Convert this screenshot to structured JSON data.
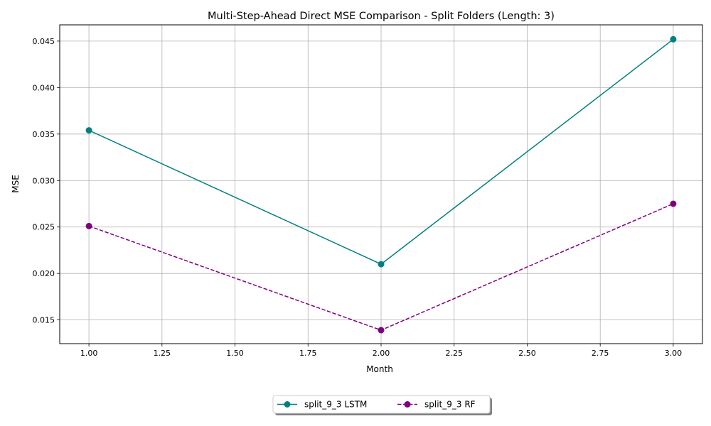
{
  "chart_data": {
    "type": "line",
    "title": "Multi-Step-Ahead Direct MSE Comparison - Split Folders (Length: 3)",
    "xlabel": "Month",
    "ylabel": "MSE",
    "xlim": [
      0.9,
      3.1
    ],
    "ylim": [
      0.01245,
      0.04675
    ],
    "xticks": [
      "1.00",
      "1.25",
      "1.50",
      "1.75",
      "2.00",
      "2.25",
      "2.50",
      "2.75",
      "3.00"
    ],
    "xtick_values": [
      1.0,
      1.25,
      1.5,
      1.75,
      2.0,
      2.25,
      2.5,
      2.75,
      3.0
    ],
    "yticks": [
      "0.015",
      "0.020",
      "0.025",
      "0.030",
      "0.035",
      "0.040",
      "0.045"
    ],
    "ytick_values": [
      0.015,
      0.02,
      0.025,
      0.03,
      0.035,
      0.04,
      0.045
    ],
    "grid": true,
    "legend_position": "bottom-center",
    "x": [
      1,
      2,
      3
    ],
    "series": [
      {
        "name": "split_9_3 LSTM",
        "values": [
          0.0354,
          0.021,
          0.0452
        ],
        "color": "#008080",
        "dash": "solid"
      },
      {
        "name": "split_9_3 RF",
        "values": [
          0.0251,
          0.0139,
          0.0275
        ],
        "color": "#800080",
        "dash": "dashed"
      }
    ]
  }
}
